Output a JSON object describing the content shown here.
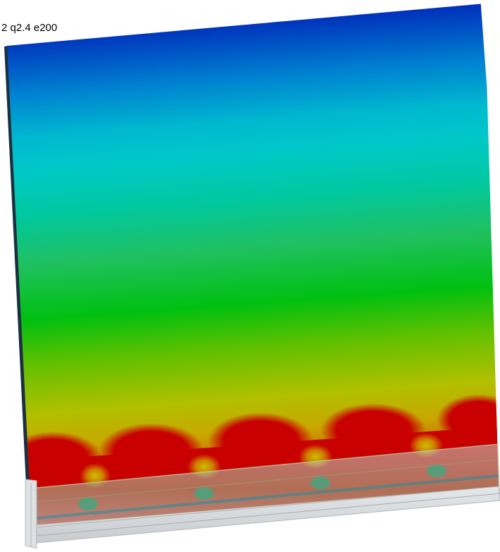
{
  "scene": {
    "label": "2 q2.4 e200"
  },
  "colors": {
    "colormap": [
      "#0010b0",
      "#0050c8",
      "#0090d0",
      "#00c8c8",
      "#00d8a0",
      "#10c860",
      "#10c010",
      "#80c000",
      "#c8c000",
      "#d08000",
      "#c80000"
    ],
    "base_plate": "#d8dde0",
    "background": "#ffffff"
  }
}
